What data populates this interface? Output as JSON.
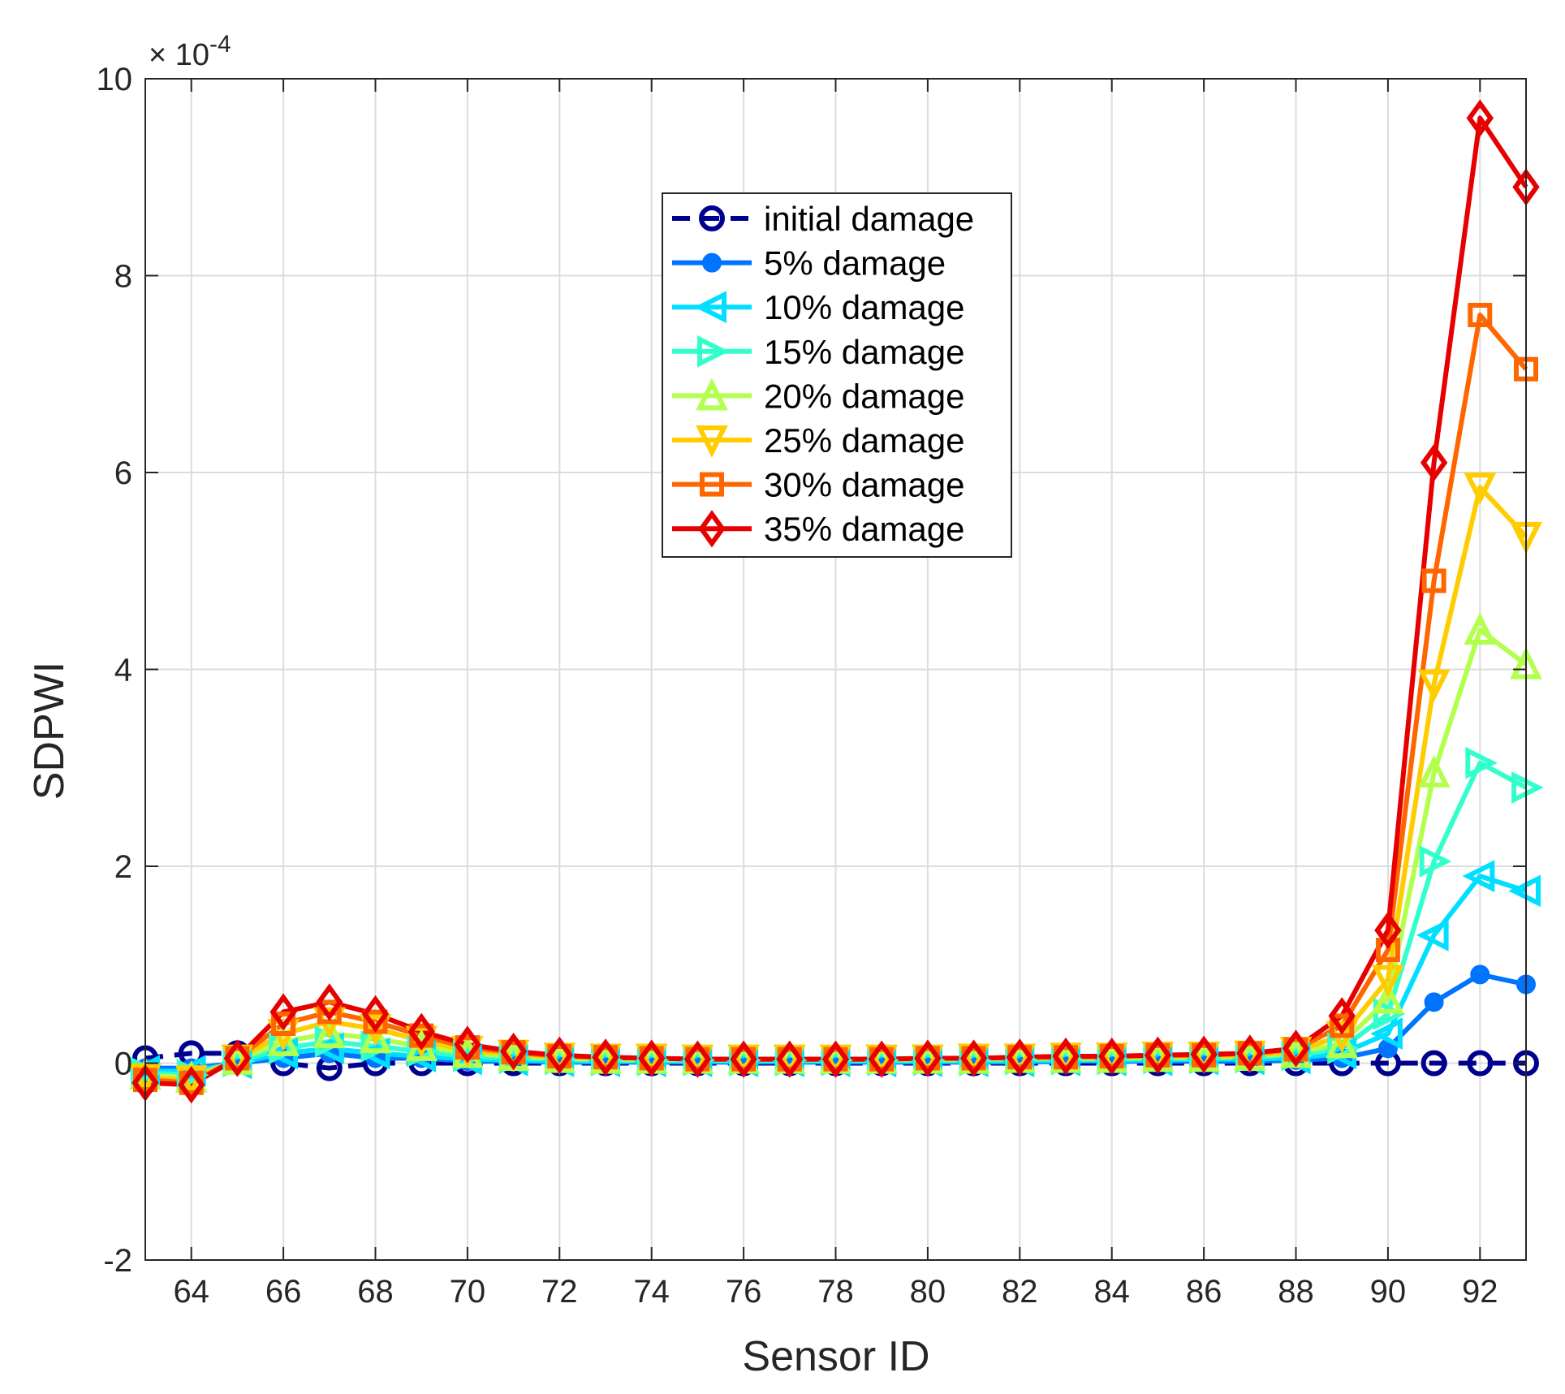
{
  "chart_data": {
    "type": "line",
    "title": "",
    "xlabel": "Sensor ID",
    "ylabel": "SDPWI",
    "exponent_label": "× 10",
    "exponent_power": "-4",
    "x": [
      63,
      64,
      65,
      66,
      67,
      68,
      69,
      70,
      71,
      72,
      73,
      74,
      75,
      76,
      77,
      78,
      79,
      80,
      81,
      82,
      83,
      84,
      85,
      86,
      87,
      88,
      89,
      90,
      91,
      92,
      93
    ],
    "xlim": [
      63,
      93
    ],
    "ylim": [
      -2,
      10
    ],
    "xticks": [
      64,
      66,
      68,
      70,
      72,
      74,
      76,
      78,
      80,
      82,
      84,
      86,
      88,
      90,
      92
    ],
    "xtick_labels": [
      "64",
      "66",
      "68",
      "70",
      "72",
      "74",
      "76",
      "78",
      "80",
      "82",
      "84",
      "86",
      "88",
      "90",
      "92"
    ],
    "yticks": [
      -2,
      0,
      2,
      4,
      6,
      8,
      10
    ],
    "ytick_labels": [
      "-2",
      "0",
      "2",
      "4",
      "6",
      "8",
      "10"
    ],
    "grid": true,
    "legend_position": "top-center",
    "series": [
      {
        "name": "initial damage",
        "color": "#00008f",
        "marker": "circle-open",
        "dashed": true,
        "values": [
          0.05,
          0.1,
          0.1,
          0,
          -0.05,
          0,
          0,
          0,
          0,
          0,
          0,
          0,
          0,
          0,
          0,
          0,
          0,
          0,
          0,
          0,
          0,
          0,
          0,
          0,
          0,
          0,
          0,
          0,
          0,
          0,
          0
        ]
      },
      {
        "name": "5% damage",
        "color": "#0073ff",
        "marker": "dot",
        "dashed": false,
        "values": [
          -0.05,
          -0.05,
          0,
          0.05,
          0.1,
          0.05,
          0.05,
          0.02,
          0.02,
          0.01,
          0.01,
          0.01,
          0.01,
          0.01,
          0.01,
          0.01,
          0.01,
          0.01,
          0.01,
          0.01,
          0.02,
          0.02,
          0.02,
          0.02,
          0.02,
          0.03,
          0.05,
          0.15,
          0.62,
          0.9,
          0.8
        ]
      },
      {
        "name": "10% damage",
        "color": "#00dfff",
        "marker": "triangle-left",
        "dashed": false,
        "values": [
          -0.08,
          -0.08,
          0,
          0.1,
          0.15,
          0.1,
          0.07,
          0.04,
          0.03,
          0.02,
          0.02,
          0.02,
          0.02,
          0.02,
          0.02,
          0.02,
          0.02,
          0.02,
          0.02,
          0.02,
          0.03,
          0.03,
          0.03,
          0.04,
          0.04,
          0.05,
          0.1,
          0.3,
          1.3,
          1.9,
          1.75
        ]
      },
      {
        "name": "15% damage",
        "color": "#33ffcc",
        "marker": "triangle-right",
        "dashed": false,
        "values": [
          -0.1,
          -0.12,
          0.02,
          0.15,
          0.22,
          0.17,
          0.12,
          0.07,
          0.05,
          0.04,
          0.03,
          0.03,
          0.03,
          0.03,
          0.03,
          0.03,
          0.03,
          0.03,
          0.03,
          0.04,
          0.04,
          0.04,
          0.05,
          0.05,
          0.06,
          0.08,
          0.15,
          0.5,
          2.05,
          3.05,
          2.8
        ]
      },
      {
        "name": "20% damage",
        "color": "#b3ff4d",
        "marker": "triangle-up",
        "dashed": false,
        "values": [
          -0.12,
          -0.15,
          0.03,
          0.22,
          0.3,
          0.25,
          0.17,
          0.1,
          0.07,
          0.05,
          0.04,
          0.04,
          0.04,
          0.04,
          0.04,
          0.04,
          0.04,
          0.04,
          0.04,
          0.05,
          0.05,
          0.05,
          0.06,
          0.06,
          0.07,
          0.1,
          0.2,
          0.65,
          2.95,
          4.4,
          4.05
        ]
      },
      {
        "name": "25% damage",
        "color": "#ffcc00",
        "marker": "triangle-down",
        "dashed": false,
        "values": [
          -0.15,
          -0.17,
          0.04,
          0.3,
          0.42,
          0.35,
          0.23,
          0.13,
          0.09,
          0.06,
          0.05,
          0.05,
          0.04,
          0.04,
          0.04,
          0.04,
          0.04,
          0.04,
          0.05,
          0.05,
          0.06,
          0.06,
          0.07,
          0.07,
          0.08,
          0.12,
          0.28,
          0.85,
          3.85,
          5.85,
          5.35
        ]
      },
      {
        "name": "30% damage",
        "color": "#ff6600",
        "marker": "square",
        "dashed": false,
        "values": [
          -0.17,
          -0.2,
          0.05,
          0.4,
          0.52,
          0.42,
          0.28,
          0.16,
          0.11,
          0.07,
          0.06,
          0.05,
          0.04,
          0.04,
          0.04,
          0.04,
          0.04,
          0.05,
          0.05,
          0.06,
          0.06,
          0.07,
          0.08,
          0.08,
          0.1,
          0.14,
          0.38,
          1.15,
          4.9,
          7.6,
          7.05
        ]
      },
      {
        "name": "35% damage",
        "color": "#e60000",
        "marker": "diamond",
        "dashed": false,
        "values": [
          -0.2,
          -0.22,
          0.05,
          0.52,
          0.62,
          0.5,
          0.32,
          0.19,
          0.12,
          0.08,
          0.06,
          0.05,
          0.04,
          0.04,
          0.04,
          0.04,
          0.04,
          0.05,
          0.05,
          0.06,
          0.07,
          0.07,
          0.08,
          0.09,
          0.1,
          0.15,
          0.48,
          1.35,
          6.1,
          9.6,
          8.9
        ]
      }
    ]
  }
}
